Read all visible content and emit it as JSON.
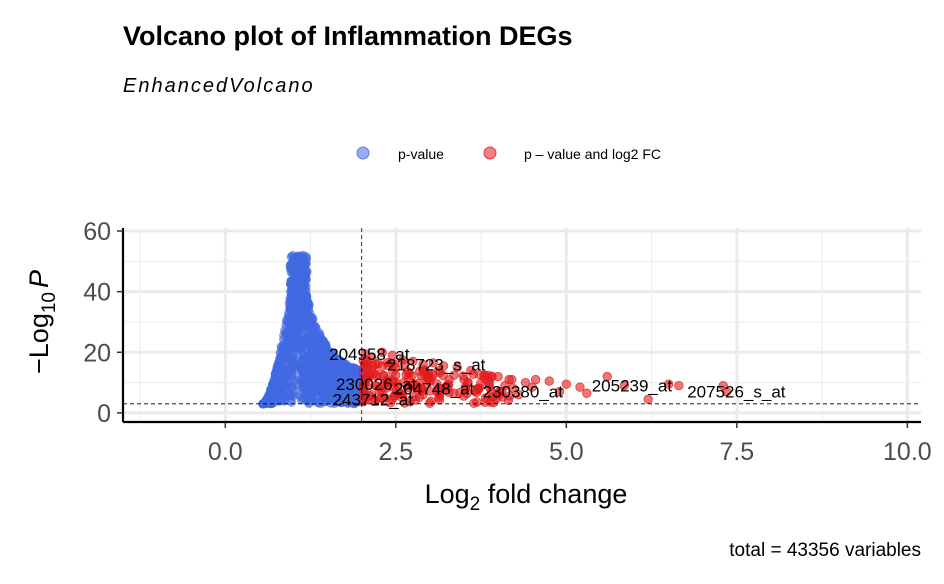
{
  "chart_data": {
    "type": "scatter",
    "title": "Volcano plot of Inflammation DEGs",
    "subtitle": "EnhancedVolcano",
    "xlabel": "Log2 fold change",
    "ylabel": "-Log10 P",
    "xlim": [
      -1.5,
      10.2
    ],
    "ylim": [
      -3,
      61
    ],
    "x_ticks": [
      "0.0",
      "2.5",
      "5.0",
      "7.5",
      "10.0"
    ],
    "y_ticks": [
      "0",
      "20",
      "40",
      "60"
    ],
    "x_tick_values": [
      0,
      2.5,
      5,
      7.5,
      10
    ],
    "y_tick_values": [
      0,
      20,
      40,
      60
    ],
    "fc_cutoff": 2,
    "p_cutoff": 3,
    "grid": true,
    "legend_position": "top",
    "legend": [
      {
        "name": "p-value",
        "color": "#4169E1"
      },
      {
        "name": "p – value and log2 FC",
        "color": "#E31A1C"
      }
    ],
    "caption": "total = 43356 variables",
    "series": [
      {
        "name": "p-value",
        "color": "#4169E1",
        "x_range": [
          0.55,
          2.0
        ],
        "y_range": [
          3,
          54
        ],
        "peak_x": 1.05,
        "peak_y": 54
      },
      {
        "name": "p – value and log2 FC",
        "color": "#E31A1C",
        "points": [
          [
            2.05,
            19.5
          ],
          [
            2.15,
            18
          ],
          [
            2.3,
            20
          ],
          [
            2.45,
            19
          ],
          [
            2.6,
            17.5
          ],
          [
            2.75,
            17
          ],
          [
            2.9,
            16
          ],
          [
            3.05,
            16.5
          ],
          [
            3.2,
            15.5
          ],
          [
            3.4,
            15
          ],
          [
            3.6,
            14
          ],
          [
            3.8,
            12.5
          ],
          [
            4.0,
            12
          ],
          [
            4.2,
            11
          ],
          [
            4.4,
            10
          ],
          [
            4.55,
            11
          ],
          [
            4.75,
            10.5
          ],
          [
            5.0,
            9.5
          ],
          [
            5.2,
            8.5
          ],
          [
            5.6,
            12
          ],
          [
            5.85,
            9
          ],
          [
            6.2,
            4.5
          ],
          [
            6.5,
            9.5
          ],
          [
            6.65,
            9
          ],
          [
            7.3,
            9
          ],
          [
            7.35,
            7
          ],
          [
            2.1,
            12
          ],
          [
            2.2,
            9
          ],
          [
            2.3,
            7
          ],
          [
            2.5,
            10
          ],
          [
            2.6,
            6
          ],
          [
            2.7,
            13
          ],
          [
            2.8,
            8
          ],
          [
            2.9,
            6
          ],
          [
            3.0,
            10.5
          ],
          [
            3.1,
            7
          ],
          [
            3.25,
            9
          ],
          [
            3.35,
            6.5
          ],
          [
            3.5,
            11
          ],
          [
            3.7,
            8
          ],
          [
            3.9,
            7
          ],
          [
            4.1,
            9
          ],
          [
            4.3,
            6
          ],
          [
            4.5,
            8.5
          ],
          [
            4.9,
            7
          ],
          [
            5.3,
            6.5
          ]
        ]
      }
    ],
    "labels": [
      {
        "text": "204958_at",
        "x": 2.05,
        "y": 19.5
      },
      {
        "text": "218723_s_at",
        "x": 2.9,
        "y": 16
      },
      {
        "text": "230026_at",
        "x": 2.15,
        "y": 9.5
      },
      {
        "text": "243712_at",
        "x": 2.1,
        "y": 4.5
      },
      {
        "text": "204748_at",
        "x": 3.0,
        "y": 8
      },
      {
        "text": "230380_at",
        "x": 4.3,
        "y": 7
      },
      {
        "text": "205239_at",
        "x": 5.9,
        "y": 9
      },
      {
        "text": "207526_s_at",
        "x": 7.3,
        "y": 7
      }
    ]
  }
}
